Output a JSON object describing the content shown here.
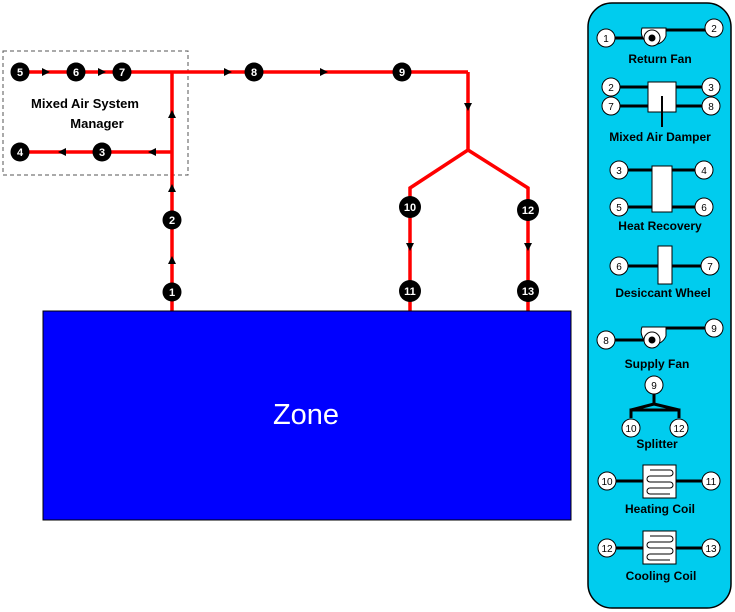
{
  "colors": {
    "duct": "#ff0000",
    "zone_fill": "#0000ff",
    "zone_text": "#ffffff",
    "legend_fill": "#00ccee",
    "node_dark": "#000000",
    "node_light": "#ffffff"
  },
  "manager": {
    "label_line1": "Mixed Air System",
    "label_line2": "Manager"
  },
  "zone": {
    "label": "Zone"
  },
  "nodes": [
    "1",
    "2",
    "3",
    "4",
    "5",
    "6",
    "7",
    "8",
    "9",
    "10",
    "11",
    "12",
    "13"
  ],
  "legend": {
    "return_fan": {
      "label": "Return Fan",
      "inlet": "1",
      "outlet": "2"
    },
    "mixed_air_damper": {
      "label": "Mixed Air Damper",
      "nodes": [
        "2",
        "3",
        "7",
        "8"
      ]
    },
    "heat_recovery": {
      "label": "Heat Recovery",
      "nodes": [
        "3",
        "4",
        "5",
        "6"
      ]
    },
    "desiccant_wheel": {
      "label": "Desiccant Wheel",
      "inlet": "6",
      "outlet": "7"
    },
    "supply_fan": {
      "label": "Supply Fan",
      "inlet": "8",
      "outlet": "9"
    },
    "splitter": {
      "label": "Splitter",
      "inlet": "9",
      "outlets": [
        "10",
        "12"
      ]
    },
    "heating_coil": {
      "label": "Heating Coil",
      "inlet": "10",
      "outlet": "11"
    },
    "cooling_coil": {
      "label": "Cooling Coil",
      "inlet": "12",
      "outlet": "13"
    }
  }
}
